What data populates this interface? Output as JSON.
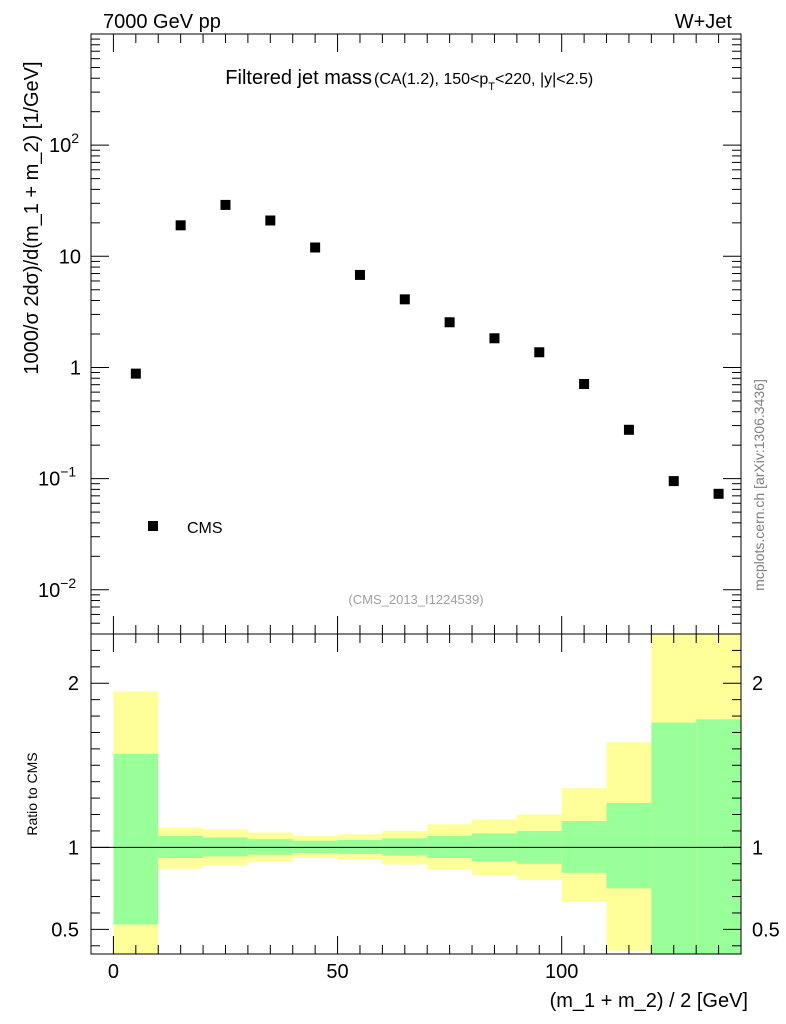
{
  "header": {
    "energy_label": "7000 GeV pp",
    "process_label": "W+Jet"
  },
  "chart_data": [
    {
      "type": "scatter",
      "title": "Filtered jet mass",
      "subtitle": {
        "prefix": "(CA(1.2), 150<p",
        "subscript": "T",
        "suffix": "<220, |y|<2.5)"
      },
      "ylabel": "1000/σ 2dσ)/d(m_1 + m_2) [1/GeV]",
      "yscale": "log",
      "ylim": [
        0.004,
        1000
      ],
      "xlim": [
        -5,
        140
      ],
      "y_tick_labels": [
        {
          "value": 100,
          "base": "10",
          "exp": "2"
        },
        {
          "value": 10,
          "base": "10",
          "exp": ""
        },
        {
          "value": 1,
          "base": "1",
          "exp": ""
        },
        {
          "value": 0.1,
          "base": "10",
          "exp": "−1"
        },
        {
          "value": 0.01,
          "base": "10",
          "exp": "−2"
        }
      ],
      "series": [
        {
          "name": "CMS",
          "x": [
            5,
            15,
            25,
            35,
            45,
            55,
            65,
            75,
            85,
            95,
            105,
            115,
            125,
            135
          ],
          "y": [
            0.88,
            19,
            29,
            21,
            12,
            6.8,
            4.1,
            2.55,
            1.83,
            1.37,
            0.71,
            0.275,
            0.095,
            0.073
          ]
        }
      ],
      "legend": {
        "label": "CMS",
        "placement": "bottom-left"
      },
      "analysis_label": "(CMS_2013_I1224539)"
    },
    {
      "type": "bar",
      "ylabel": "Ratio to CMS",
      "xlabel": "(m_1 + m_2) / 2 [GeV]",
      "ylim": [
        0.35,
        2.3
      ],
      "xlim": [
        -5,
        140
      ],
      "x_ticks": [
        0,
        50,
        100
      ],
      "y_ticks": [
        "0.5",
        "1",
        "2"
      ],
      "reference_line": 1,
      "bins": [
        {
          "lo": 0,
          "hi": 10,
          "stat_lo": 0.53,
          "stat_hi": 1.57,
          "tot_lo": 0.35,
          "tot_hi": 1.95
        },
        {
          "lo": 10,
          "hi": 20,
          "stat_lo": 0.935,
          "stat_hi": 1.07,
          "tot_lo": 0.87,
          "tot_hi": 1.12
        },
        {
          "lo": 20,
          "hi": 30,
          "stat_lo": 0.945,
          "stat_hi": 1.06,
          "tot_lo": 0.89,
          "tot_hi": 1.11
        },
        {
          "lo": 30,
          "hi": 40,
          "stat_lo": 0.955,
          "stat_hi": 1.05,
          "tot_lo": 0.91,
          "tot_hi": 1.09
        },
        {
          "lo": 40,
          "hi": 50,
          "stat_lo": 0.965,
          "stat_hi": 1.04,
          "tot_lo": 0.935,
          "tot_hi": 1.07
        },
        {
          "lo": 50,
          "hi": 60,
          "stat_lo": 0.96,
          "stat_hi": 1.045,
          "tot_lo": 0.925,
          "tot_hi": 1.08
        },
        {
          "lo": 60,
          "hi": 70,
          "stat_lo": 0.95,
          "stat_hi": 1.055,
          "tot_lo": 0.895,
          "tot_hi": 1.1
        },
        {
          "lo": 70,
          "hi": 80,
          "stat_lo": 0.935,
          "stat_hi": 1.07,
          "tot_lo": 0.865,
          "tot_hi": 1.14
        },
        {
          "lo": 80,
          "hi": 90,
          "stat_lo": 0.915,
          "stat_hi": 1.085,
          "tot_lo": 0.83,
          "tot_hi": 1.17
        },
        {
          "lo": 90,
          "hi": 100,
          "stat_lo": 0.9,
          "stat_hi": 1.1,
          "tot_lo": 0.8,
          "tot_hi": 1.2
        },
        {
          "lo": 100,
          "hi": 110,
          "stat_lo": 0.845,
          "stat_hi": 1.16,
          "tot_lo": 0.67,
          "tot_hi": 1.36
        },
        {
          "lo": 110,
          "hi": 120,
          "stat_lo": 0.75,
          "stat_hi": 1.27,
          "tot_lo": 0.37,
          "tot_hi": 1.64
        },
        {
          "lo": 120,
          "hi": 130,
          "stat_lo": 0.35,
          "stat_hi": 1.76,
          "tot_lo": 0.35,
          "tot_hi": 2.3
        },
        {
          "lo": 130,
          "hi": 140,
          "stat_lo": 0.35,
          "stat_hi": 1.78,
          "tot_lo": 0.35,
          "tot_hi": 2.3
        }
      ],
      "colors": {
        "total_band": "#ffff99",
        "stat_band": "#99ff99"
      }
    }
  ],
  "side_label": "mcplots.cern.ch [arXiv:1306.3436]"
}
